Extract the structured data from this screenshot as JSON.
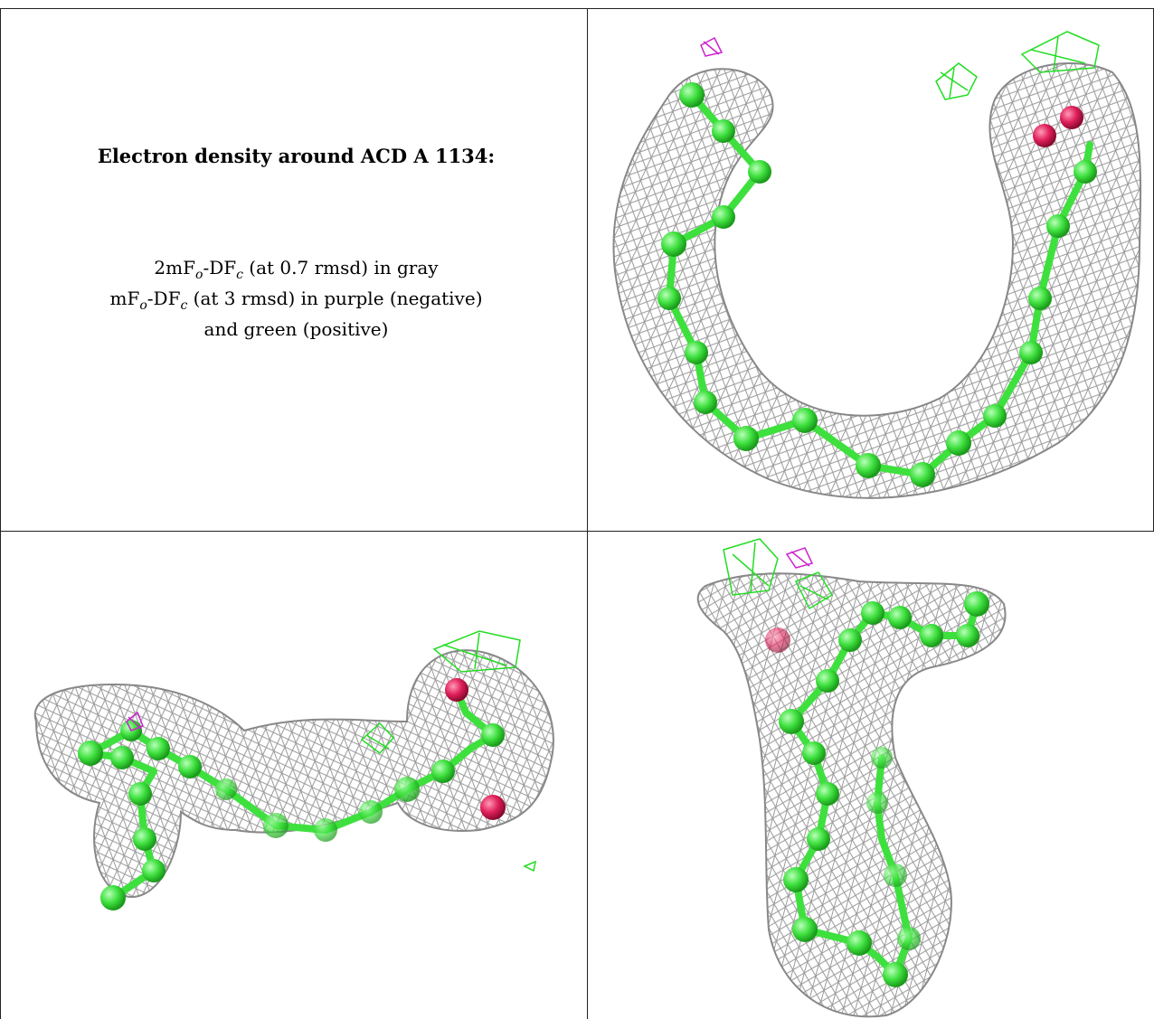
{
  "caption": {
    "title": "Electron density around ACD A 1134:",
    "line1": {
      "pre": "2mF",
      "sub1": "o",
      "mid": "-DF",
      "sub2": "c",
      "post": " (at 0.7 rmsd) in gray"
    },
    "line2": {
      "pre": "mF",
      "sub1": "o",
      "mid": "-DF",
      "sub2": "c",
      "post": " (at 3 rmsd) in purple (negative)"
    },
    "line3": "and green (positive)"
  },
  "colors": {
    "mesh_gray": "#9a9a9a",
    "carbon_green": "#3ee03e",
    "oxygen_red": "#e0205a",
    "positive_green": "#22dd22",
    "negative_purple": "#cc22cc",
    "border": "#222222"
  }
}
